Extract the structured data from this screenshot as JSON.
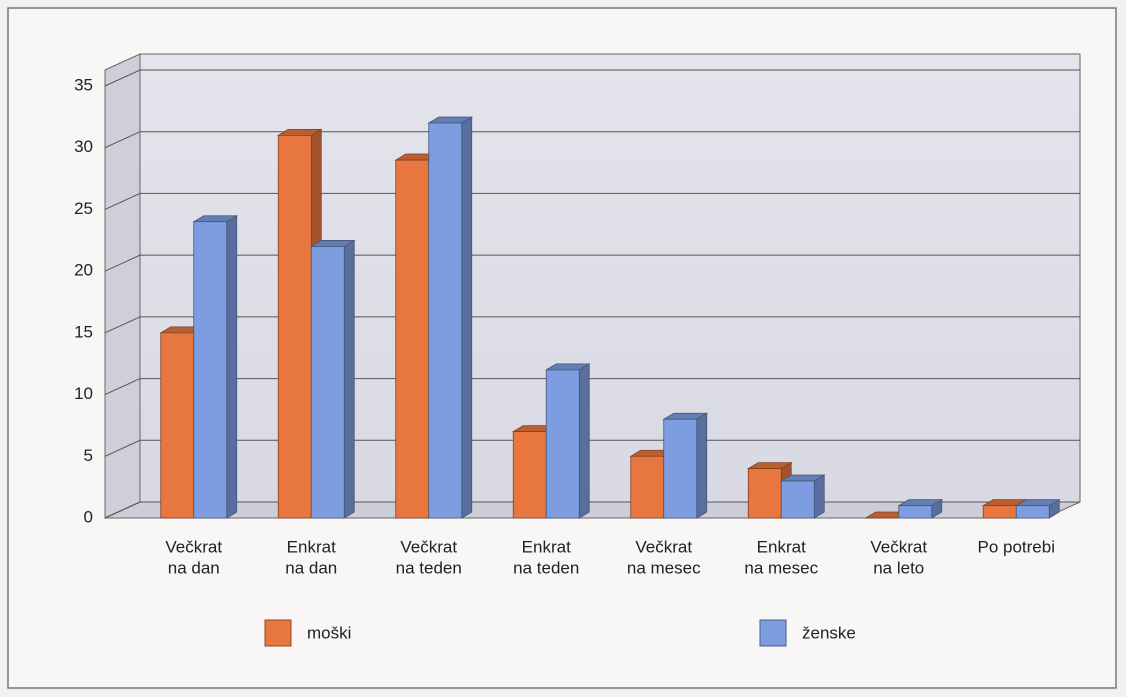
{
  "chart_data": {
    "type": "bar3d",
    "categories": [
      [
        "Večkrat",
        "na dan"
      ],
      [
        "Enkrat",
        "na dan"
      ],
      [
        "Večkrat",
        "na teden"
      ],
      [
        "Enkrat",
        "na teden"
      ],
      [
        "Večkrat",
        "na mesec"
      ],
      [
        "Enkrat",
        "na mesec"
      ],
      [
        "Večkrat",
        "na leto"
      ],
      [
        "Po potrebi"
      ]
    ],
    "series": [
      {
        "name": "moški",
        "color": "#e8773f",
        "values": [
          15,
          31,
          29,
          7,
          5,
          4,
          0,
          1
        ]
      },
      {
        "name": "ženske",
        "color": "#7d9de0",
        "values": [
          24,
          22,
          32,
          12,
          8,
          3,
          1,
          1
        ]
      }
    ],
    "ylim": [
      0,
      35
    ],
    "yticks": [
      0,
      5,
      10,
      15,
      20,
      25,
      30,
      35
    ],
    "grid": true,
    "legend": "bottom"
  }
}
